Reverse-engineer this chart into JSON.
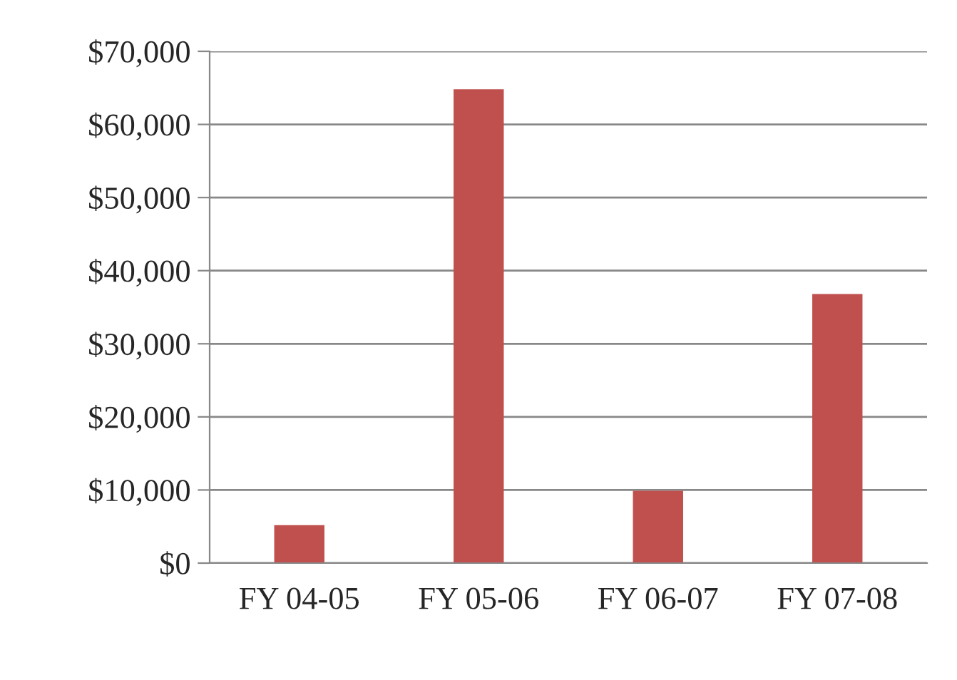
{
  "chart_data": {
    "type": "bar",
    "categories": [
      "FY 04-05",
      "FY 05-06",
      "FY 06-07",
      "FY 07-08"
    ],
    "values": [
      5200,
      64800,
      9900,
      36800
    ],
    "color": "#c0504d",
    "ylim": [
      0,
      70000
    ],
    "yticks": [
      {
        "value": 0,
        "label": "$0"
      },
      {
        "value": 10000,
        "label": "$10,000"
      },
      {
        "value": 20000,
        "label": "$20,000"
      },
      {
        "value": 30000,
        "label": "$30,000"
      },
      {
        "value": 40000,
        "label": "$40,000"
      },
      {
        "value": 50000,
        "label": "$50,000"
      },
      {
        "value": 60000,
        "label": "$60,000"
      },
      {
        "value": 70000,
        "label": "$70,000"
      }
    ],
    "grid": "y"
  }
}
